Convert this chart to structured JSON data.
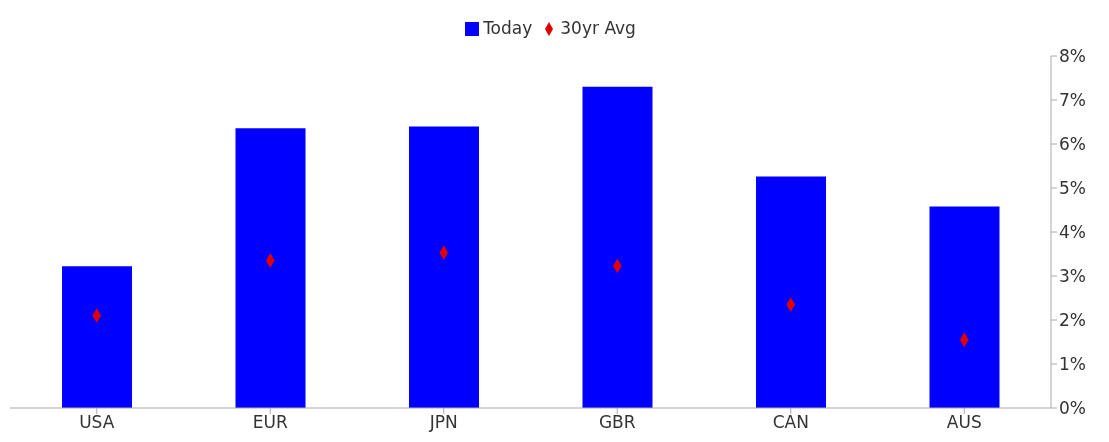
{
  "chart_data": {
    "type": "bar",
    "categories": [
      "USA",
      "EUR",
      "JPN",
      "GBR",
      "CAN",
      "AUS"
    ],
    "series": [
      {
        "name": "Today",
        "color": "#0000ff",
        "values": [
          3.22,
          6.36,
          6.4,
          7.3,
          5.26,
          4.58
        ]
      },
      {
        "name": "30yr Avg",
        "type": "scatter",
        "color": "#e00000",
        "marker": "diamond",
        "values": [
          2.1,
          3.35,
          3.53,
          3.23,
          2.35,
          1.55
        ]
      }
    ],
    "ylim": [
      0,
      8
    ],
    "yticks": [
      {
        "value": 0,
        "label": "0%"
      },
      {
        "value": 1,
        "label": "1%"
      },
      {
        "value": 2,
        "label": "2%"
      },
      {
        "value": 3,
        "label": "3%"
      },
      {
        "value": 4,
        "label": "4%"
      },
      {
        "value": 5,
        "label": "5%"
      },
      {
        "value": 6,
        "label": "6%"
      },
      {
        "value": 7,
        "label": "7%"
      },
      {
        "value": 8,
        "label": "8%"
      }
    ],
    "legend": "top",
    "grid": false
  }
}
